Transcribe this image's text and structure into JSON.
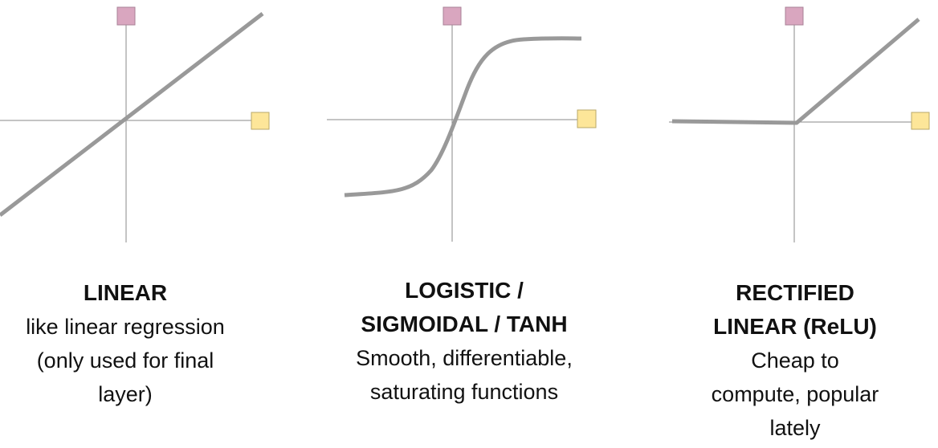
{
  "colors": {
    "axis": "#8a8a8a",
    "curve": "#999999",
    "output_marker": "#d9a6bf",
    "output_marker_border": "#a98197",
    "input_marker": "#fde699",
    "input_marker_border": "#b9a869",
    "text": "#111111"
  },
  "panels": [
    {
      "id": "linear",
      "title": "LINEAR",
      "description": "like linear regression\n(only used for final\nlayer)"
    },
    {
      "id": "logistic",
      "title": "LOGISTIC /\nSIGMOIDAL / TANH",
      "description": "Smooth, differentiable,\nsaturating functions"
    },
    {
      "id": "relu",
      "title": "RECTIFIED\nLINEAR (ReLU)",
      "description": "Cheap to\ncompute, popular\nlately"
    }
  ]
}
